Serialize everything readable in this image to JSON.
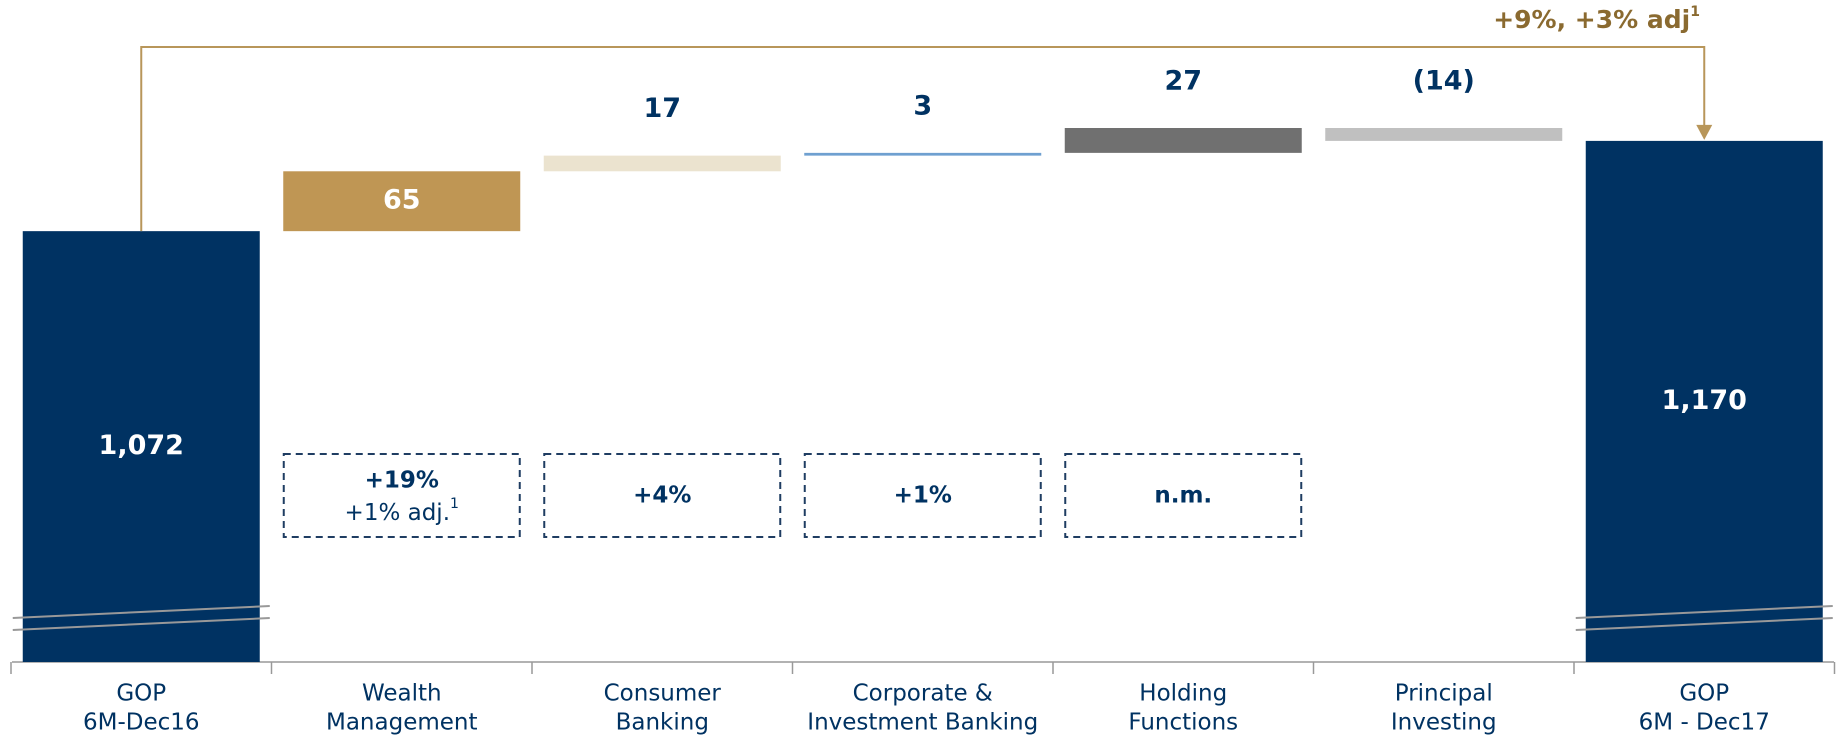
{
  "chart_data": {
    "type": "waterfall",
    "categories": [
      [
        "GOP",
        "6M-Dec16"
      ],
      [
        "Wealth",
        "Management"
      ],
      [
        "Consumer",
        "Banking"
      ],
      [
        "Corporate &",
        "Investment Banking"
      ],
      [
        "Holding",
        "Functions"
      ],
      [
        "Principal",
        "Investing"
      ],
      [
        "GOP",
        "6M - Dec17"
      ]
    ],
    "values": [
      1072,
      65,
      17,
      3,
      27,
      -14,
      1170
    ],
    "value_labels": [
      "1,072",
      "65",
      "17",
      "3",
      "27",
      "(14)",
      "1,170"
    ],
    "kinds": [
      "total",
      "delta",
      "delta",
      "delta",
      "delta",
      "delta",
      "total"
    ],
    "colors": [
      "#003262",
      "#bf9654",
      "#ebe3cf",
      "#6fa0d0",
      "#707070",
      "#c0c0c0",
      "#003262"
    ],
    "growth": [
      null,
      {
        "main": "+19%",
        "sub": "+1% adj.",
        "sup": "1"
      },
      {
        "main": "+4%"
      },
      {
        "main": "+1%"
      },
      {
        "main": "n.m."
      },
      null,
      null
    ],
    "annotation": {
      "text": "+9%, +3% adj",
      "sup": "1"
    }
  }
}
